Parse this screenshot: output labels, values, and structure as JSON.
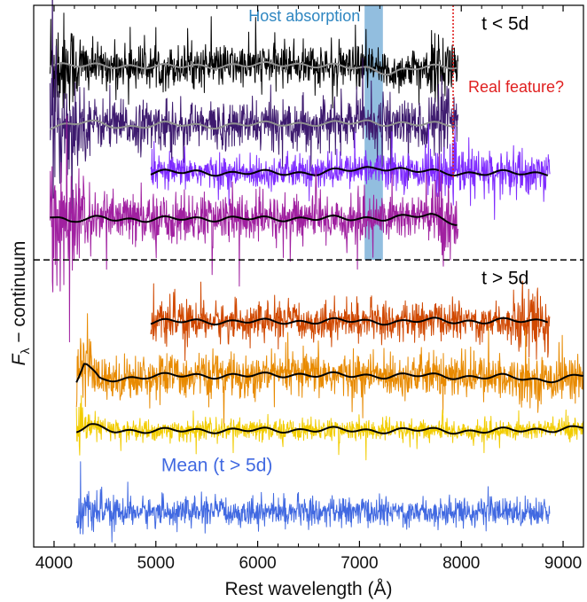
{
  "chart_data": {
    "type": "line",
    "title": "",
    "xlabel": "Rest wavelength (Å)",
    "ylabel_main": "F",
    "ylabel_sub": "λ",
    "ylabel_rest": " − continuum",
    "xlim": [
      3800,
      9200
    ],
    "ylim": [
      0,
      100
    ],
    "x_ticks": [
      4000,
      5000,
      6000,
      7000,
      8000,
      9000
    ],
    "x_tick_labels": [
      "4000",
      "5000",
      "6000",
      "7000",
      "8000",
      "9000"
    ],
    "grid": false,
    "legend": "none",
    "separator": {
      "y": 53,
      "style": "dashed",
      "color": "#000000"
    },
    "host_absorption_band": {
      "x0": 7050,
      "x1": 7230,
      "color": "#7fb3d9",
      "label": "Host absorption",
      "label_color": "#2e86c1"
    },
    "real_feature_line": {
      "x": 7920,
      "color": "#e02020",
      "label": "Real feature?"
    },
    "group_labels": [
      {
        "text": "t < 5d",
        "x": 8200,
        "y": 95.5
      },
      {
        "text": "t > 5d",
        "x": 8200,
        "y": 48.5
      }
    ],
    "mean_label": {
      "text": "Mean (t > 5d)",
      "x": 5600,
      "y": 14,
      "color": "#4169e1"
    },
    "series": [
      {
        "color": "#000000",
        "smooth_color": "#909090",
        "x_range": [
          3960,
          7970
        ],
        "offset": 88.5,
        "noise": 1.9,
        "smooth": [
          [
            3960,
            89.2
          ],
          [
            4300,
            88.7
          ],
          [
            4700,
            88.9
          ],
          [
            5100,
            88.6
          ],
          [
            5500,
            88.9
          ],
          [
            5900,
            88.8
          ],
          [
            6300,
            89.3
          ],
          [
            6700,
            88.7
          ],
          [
            7100,
            88.4
          ],
          [
            7300,
            87.6
          ],
          [
            7600,
            88.4
          ],
          [
            7970,
            88.9
          ]
        ]
      },
      {
        "color": "#3d1a6e",
        "smooth_color": "#909090",
        "x_range": [
          3960,
          7970
        ],
        "offset": 78,
        "noise": 2.2,
        "smooth": [
          [
            3960,
            77.5
          ],
          [
            4300,
            78.4
          ],
          [
            4700,
            77.6
          ],
          [
            5100,
            78.0
          ],
          [
            5500,
            77.8
          ],
          [
            5900,
            77.9
          ],
          [
            6300,
            78.3
          ],
          [
            6700,
            78.0
          ],
          [
            7100,
            78.6
          ],
          [
            7300,
            78.2
          ],
          [
            7600,
            77.9
          ],
          [
            7970,
            78.2
          ]
        ]
      },
      {
        "color": "#7f2bff",
        "smooth_color": "#000000",
        "x_range": [
          4950,
          8870
        ],
        "offset": 69,
        "noise": 1.5,
        "smooth": [
          [
            4950,
            69.0
          ],
          [
            5400,
            69.3
          ],
          [
            5800,
            68.9
          ],
          [
            6200,
            69.2
          ],
          [
            6600,
            69.0
          ],
          [
            7000,
            69.8
          ],
          [
            7200,
            70.2
          ],
          [
            7500,
            69.4
          ],
          [
            7900,
            69.1
          ],
          [
            8300,
            69.0
          ],
          [
            8870,
            69.0
          ]
        ]
      },
      {
        "color": "#a020a0",
        "smooth_color": "#000000",
        "x_range": [
          3960,
          7970
        ],
        "offset": 60.5,
        "noise": 2.3,
        "smooth": [
          [
            3960,
            61.3
          ],
          [
            4150,
            60.0
          ],
          [
            4500,
            60.8
          ],
          [
            4900,
            60.4
          ],
          [
            5300,
            60.6
          ],
          [
            5700,
            60.7
          ],
          [
            6100,
            60.5
          ],
          [
            6500,
            60.8
          ],
          [
            6900,
            60.5
          ],
          [
            7300,
            60.9
          ],
          [
            7700,
            61.1
          ],
          [
            7970,
            59.8
          ]
        ]
      },
      {
        "color": "#d04800",
        "smooth_color": "#000000",
        "x_range": [
          4950,
          8870
        ],
        "offset": 41.5,
        "noise": 1.7,
        "smooth": [
          [
            4950,
            41.4
          ],
          [
            5400,
            41.8
          ],
          [
            5800,
            41.5
          ],
          [
            6200,
            41.7
          ],
          [
            6600,
            41.6
          ],
          [
            7000,
            41.8
          ],
          [
            7400,
            41.5
          ],
          [
            7800,
            41.9
          ],
          [
            8200,
            41.6
          ],
          [
            8870,
            41.9
          ]
        ]
      },
      {
        "color": "#e88a00",
        "smooth_color": "#000000",
        "x_range": [
          4220,
          9200
        ],
        "offset": 31.5,
        "noise": 2.0,
        "smooth": [
          [
            4220,
            30.5
          ],
          [
            4300,
            34.0
          ],
          [
            4450,
            30.8
          ],
          [
            4900,
            31.5
          ],
          [
            5400,
            31.7
          ],
          [
            5900,
            31.6
          ],
          [
            6400,
            31.9
          ],
          [
            6900,
            31.6
          ],
          [
            7400,
            31.7
          ],
          [
            7900,
            31.5
          ],
          [
            8400,
            31.4
          ],
          [
            8800,
            30.8
          ],
          [
            9200,
            31.6
          ]
        ]
      },
      {
        "color": "#f2cc00",
        "smooth_color": "#000000",
        "x_range": [
          4220,
          9200
        ],
        "offset": 21.5,
        "noise": 1.0,
        "smooth": [
          [
            4220,
            21.3
          ],
          [
            4350,
            22.3
          ],
          [
            4600,
            21.6
          ],
          [
            5000,
            21.4
          ],
          [
            5500,
            21.6
          ],
          [
            6000,
            21.5
          ],
          [
            6500,
            21.7
          ],
          [
            7000,
            21.5
          ],
          [
            7500,
            21.6
          ],
          [
            8000,
            21.4
          ],
          [
            8500,
            21.5
          ],
          [
            9200,
            22.0
          ]
        ]
      },
      {
        "color": "#4169e1",
        "smooth_color": "",
        "x_range": [
          4220,
          8870
        ],
        "offset": 6.5,
        "noise": 1.3,
        "smooth": []
      }
    ]
  }
}
